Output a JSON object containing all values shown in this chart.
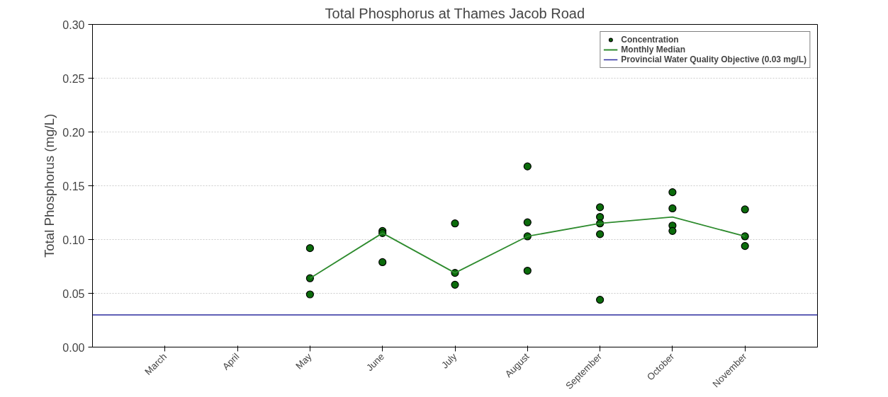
{
  "chart_data": {
    "type": "scatter",
    "title": "Total Phosphorus at Thames Jacob Road",
    "ylabel": "Total Phosphorus (mg/L)",
    "categories": [
      "March",
      "April",
      "May",
      "June",
      "July",
      "August",
      "September",
      "October",
      "November"
    ],
    "series": [
      {
        "name": "Concentration",
        "color": "#0b6b0b",
        "marker": "circle",
        "x": [
          "May",
          "May",
          "May",
          "June",
          "June",
          "June",
          "July",
          "July",
          "July",
          "August",
          "August",
          "August",
          "August",
          "September",
          "September",
          "September",
          "September",
          "September",
          "October",
          "October",
          "October",
          "October",
          "November",
          "November",
          "November"
        ],
        "values": [
          0.092,
          0.064,
          0.049,
          0.108,
          0.106,
          0.079,
          0.115,
          0.069,
          0.058,
          0.168,
          0.116,
          0.103,
          0.071,
          0.13,
          0.121,
          0.115,
          0.105,
          0.044,
          0.144,
          0.129,
          0.113,
          0.108,
          0.128,
          0.103,
          0.094
        ]
      },
      {
        "name": "Monthly Median",
        "type": "line",
        "color": "#2e8b2e",
        "line_style": "solid",
        "values": [
          null,
          null,
          0.064,
          0.106,
          0.069,
          0.103,
          0.115,
          0.121,
          0.103
        ]
      }
    ],
    "ref_lines": [
      {
        "axis": "y",
        "value": 0.03,
        "label": "Provincial Water Quality Objective (0.03 mg/L)",
        "color": "#2b2b9e",
        "line_style": "solid"
      }
    ],
    "ylim": [
      0,
      0.3
    ],
    "yticks": [
      {
        "value": 0,
        "label": "0.00"
      },
      {
        "value": 0.05,
        "label": "0.05"
      },
      {
        "value": 0.1,
        "label": "0.10"
      },
      {
        "value": 0.15,
        "label": "0.15"
      },
      {
        "value": 0.2,
        "label": "0.20"
      },
      {
        "value": 0.25,
        "label": "0.25"
      },
      {
        "value": 0.3,
        "label": "0.30"
      }
    ],
    "grid": "y",
    "legend": "top right"
  }
}
